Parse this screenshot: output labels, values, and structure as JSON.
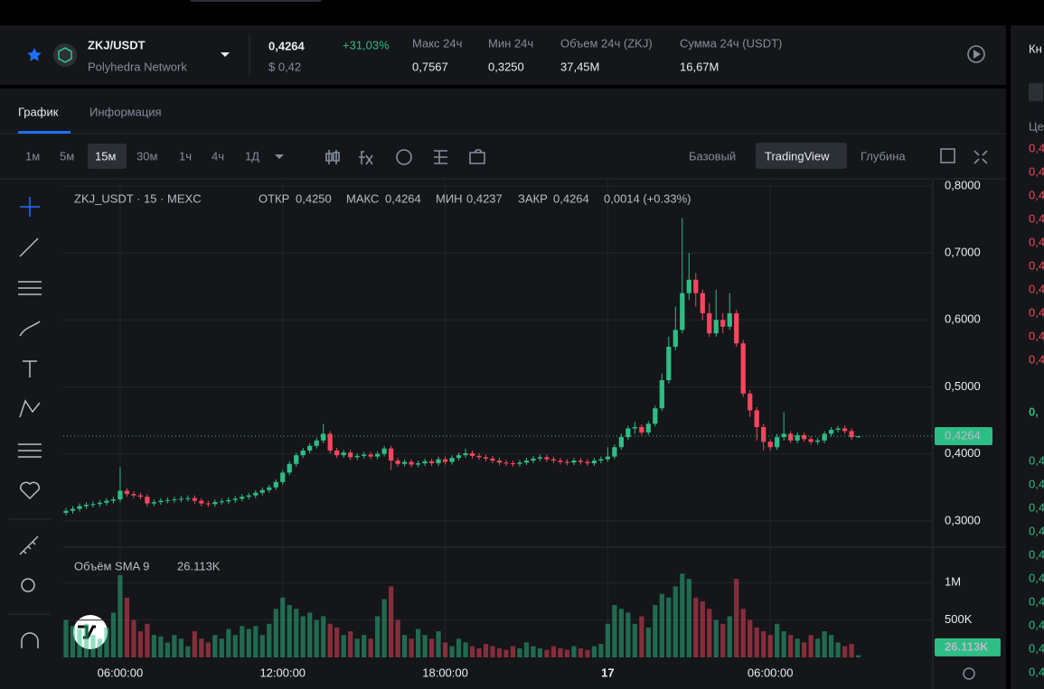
{
  "header": {
    "symbol": "ZKJ/USDT",
    "name": "Polyhedra Network",
    "price": "0,4264",
    "change": "+31,03%",
    "price_usd": "$ 0,42",
    "stats": [
      {
        "label": "Макс 24ч",
        "value": "0,7567"
      },
      {
        "label": "Мин 24ч",
        "value": "0,3250"
      },
      {
        "label": "Объем 24ч (ZKJ)",
        "value": "37,45M"
      },
      {
        "label": "Сумма 24ч (USDT)",
        "value": "16,67M"
      }
    ]
  },
  "tabs": [
    "График",
    "Информация"
  ],
  "intervals": [
    "1м",
    "5м",
    "15м",
    "30м",
    "1ч",
    "4ч",
    "1Д"
  ],
  "views": [
    "Базовый",
    "TradingView",
    "Глубина"
  ],
  "order_book_strip": {
    "header": "Кн",
    "column": "Це",
    "asks": [
      "0,4",
      "0,4",
      "0,4",
      "0,4",
      "0,4",
      "0,4",
      "0,4",
      "0,4",
      "0,4",
      "0,4"
    ],
    "mid": "0,",
    "bids": [
      "0,4",
      "0,4",
      "0,4",
      "0,4",
      "0,4",
      "0,4",
      "0,4",
      "0,4",
      "0,4",
      "0,4"
    ]
  },
  "chart_data": {
    "type": "candlestick",
    "legend": {
      "symbol": "ZKJ_USDT · 15 · MEXC",
      "items": [
        {
          "label": "ОТКР",
          "value": "0,4250"
        },
        {
          "label": "МАКС",
          "value": "0,4264"
        },
        {
          "label": "МИН",
          "value": "0,4237"
        },
        {
          "label": "ЗАКР",
          "value": "0,4264"
        }
      ],
      "change": "0,0014 (+0.33%)"
    },
    "x": [
      4,
      4.25,
      4.5,
      4.75,
      5,
      5.25,
      5.5,
      5.75,
      6,
      6.25,
      6.5,
      6.75,
      7,
      7.25,
      7.5,
      7.75,
      8,
      8.25,
      8.5,
      8.75,
      9,
      9.25,
      9.5,
      9.75,
      10,
      10.25,
      10.5,
      10.75,
      11,
      11.25,
      11.5,
      11.75,
      12,
      12.25,
      12.5,
      12.75,
      13,
      13.25,
      13.5,
      13.75,
      14,
      14.25,
      14.5,
      14.75,
      15,
      15.25,
      15.5,
      15.75,
      16,
      16.25,
      16.5,
      16.75,
      17,
      17.25,
      17.5,
      17.75,
      18,
      18.25,
      18.5,
      18.75,
      19,
      19.25,
      19.5,
      19.75,
      20,
      20.25,
      20.5,
      20.75,
      21,
      21.25,
      21.5,
      21.75,
      22,
      22.25,
      22.5,
      22.75,
      23,
      23.25,
      23.5,
      23.75,
      24,
      24.25,
      24.5,
      24.75,
      25,
      25.25,
      25.5,
      25.75,
      26,
      26.25,
      26.5,
      26.75,
      27,
      27.25,
      27.5,
      27.75,
      28,
      28.25,
      28.5,
      28.75,
      29,
      29.25,
      29.5,
      29.75,
      30,
      30.25,
      30.5,
      30.75,
      31,
      31.25,
      31.5,
      31.75,
      32,
      32.25,
      32.5,
      32.75,
      33,
      33.25
    ],
    "xlim": [
      3.9,
      36
    ],
    "xticks": [
      {
        "value": 6,
        "label": "06:00:00"
      },
      {
        "value": 12,
        "label": "12:00:00"
      },
      {
        "value": 18,
        "label": "18:00:00"
      },
      {
        "value": 24,
        "label": "17"
      },
      {
        "value": 30,
        "label": "06:00:00"
      }
    ],
    "ylim": [
      0.262,
      0.808
    ],
    "yticks": [
      {
        "value": 0.3,
        "label": "0,3000"
      },
      {
        "value": 0.4,
        "label": "0,4000"
      },
      {
        "value": 0.5,
        "label": "0,5000"
      },
      {
        "value": 0.6,
        "label": "0,6000"
      },
      {
        "value": 0.7,
        "label": "0,7000"
      },
      {
        "value": 0.8,
        "label": "0,8000"
      }
    ],
    "open": [
      0.312,
      0.315,
      0.318,
      0.322,
      0.324,
      0.325,
      0.327,
      0.33,
      0.332,
      0.345,
      0.34,
      0.338,
      0.336,
      0.326,
      0.328,
      0.33,
      0.331,
      0.332,
      0.333,
      0.334,
      0.33,
      0.326,
      0.325,
      0.328,
      0.329,
      0.331,
      0.333,
      0.336,
      0.338,
      0.342,
      0.346,
      0.35,
      0.358,
      0.372,
      0.385,
      0.398,
      0.405,
      0.412,
      0.42,
      0.43,
      0.405,
      0.398,
      0.402,
      0.395,
      0.397,
      0.399,
      0.396,
      0.4,
      0.408,
      0.39,
      0.385,
      0.388,
      0.384,
      0.386,
      0.389,
      0.386,
      0.392,
      0.388,
      0.394,
      0.398,
      0.401,
      0.397,
      0.395,
      0.393,
      0.39,
      0.387,
      0.386,
      0.385,
      0.387,
      0.39,
      0.393,
      0.395,
      0.392,
      0.39,
      0.388,
      0.387,
      0.39,
      0.388,
      0.386,
      0.39,
      0.392,
      0.396,
      0.41,
      0.425,
      0.438,
      0.44,
      0.432,
      0.445,
      0.468,
      0.51,
      0.56,
      0.585,
      0.64,
      0.66,
      0.64,
      0.61,
      0.58,
      0.6,
      0.59,
      0.61,
      0.565,
      0.49,
      0.465,
      0.44,
      0.418,
      0.41,
      0.425,
      0.43,
      0.42,
      0.428,
      0.422,
      0.418,
      0.42,
      0.43,
      0.436,
      0.438,
      0.434,
      0.425
    ],
    "high": [
      0.319,
      0.322,
      0.326,
      0.328,
      0.329,
      0.331,
      0.334,
      0.336,
      0.38,
      0.349,
      0.344,
      0.342,
      0.34,
      0.332,
      0.334,
      0.335,
      0.336,
      0.337,
      0.338,
      0.338,
      0.334,
      0.33,
      0.332,
      0.333,
      0.335,
      0.337,
      0.34,
      0.342,
      0.346,
      0.35,
      0.354,
      0.362,
      0.376,
      0.389,
      0.402,
      0.409,
      0.416,
      0.424,
      0.445,
      0.434,
      0.409,
      0.406,
      0.406,
      0.401,
      0.403,
      0.403,
      0.404,
      0.412,
      0.412,
      0.394,
      0.392,
      0.392,
      0.39,
      0.393,
      0.393,
      0.396,
      0.396,
      0.398,
      0.402,
      0.408,
      0.405,
      0.401,
      0.399,
      0.397,
      0.394,
      0.391,
      0.39,
      0.391,
      0.394,
      0.397,
      0.399,
      0.399,
      0.396,
      0.394,
      0.392,
      0.394,
      0.394,
      0.392,
      0.394,
      0.396,
      0.41,
      0.414,
      0.43,
      0.442,
      0.448,
      0.444,
      0.449,
      0.472,
      0.52,
      0.575,
      0.62,
      0.752,
      0.7,
      0.67,
      0.645,
      0.625,
      0.645,
      0.61,
      0.64,
      0.615,
      0.57,
      0.495,
      0.47,
      0.445,
      0.422,
      0.43,
      0.462,
      0.434,
      0.432,
      0.432,
      0.426,
      0.424,
      0.434,
      0.44,
      0.442,
      0.442,
      0.438,
      0.4264
    ],
    "low": [
      0.308,
      0.311,
      0.314,
      0.318,
      0.32,
      0.321,
      0.323,
      0.326,
      0.328,
      0.336,
      0.334,
      0.332,
      0.322,
      0.322,
      0.324,
      0.326,
      0.327,
      0.328,
      0.329,
      0.326,
      0.322,
      0.321,
      0.321,
      0.324,
      0.325,
      0.327,
      0.329,
      0.332,
      0.334,
      0.338,
      0.342,
      0.346,
      0.354,
      0.368,
      0.381,
      0.394,
      0.401,
      0.408,
      0.416,
      0.401,
      0.394,
      0.394,
      0.391,
      0.391,
      0.393,
      0.392,
      0.392,
      0.396,
      0.376,
      0.381,
      0.381,
      0.38,
      0.38,
      0.382,
      0.382,
      0.382,
      0.384,
      0.384,
      0.39,
      0.394,
      0.393,
      0.391,
      0.389,
      0.386,
      0.383,
      0.382,
      0.381,
      0.381,
      0.383,
      0.386,
      0.389,
      0.388,
      0.386,
      0.384,
      0.383,
      0.383,
      0.384,
      0.382,
      0.382,
      0.386,
      0.388,
      0.392,
      0.406,
      0.421,
      0.43,
      0.428,
      0.428,
      0.441,
      0.464,
      0.505,
      0.555,
      0.58,
      0.63,
      0.62,
      0.6,
      0.575,
      0.575,
      0.58,
      0.585,
      0.56,
      0.485,
      0.455,
      0.42,
      0.405,
      0.405,
      0.406,
      0.42,
      0.416,
      0.416,
      0.418,
      0.414,
      0.414,
      0.416,
      0.426,
      0.432,
      0.43,
      0.421,
      0.4237
    ],
    "close": [
      0.315,
      0.318,
      0.322,
      0.324,
      0.325,
      0.327,
      0.33,
      0.332,
      0.345,
      0.34,
      0.338,
      0.336,
      0.326,
      0.328,
      0.33,
      0.331,
      0.332,
      0.333,
      0.334,
      0.33,
      0.326,
      0.325,
      0.328,
      0.329,
      0.331,
      0.333,
      0.336,
      0.338,
      0.342,
      0.346,
      0.35,
      0.358,
      0.372,
      0.385,
      0.398,
      0.405,
      0.412,
      0.42,
      0.43,
      0.405,
      0.398,
      0.402,
      0.395,
      0.397,
      0.399,
      0.396,
      0.4,
      0.408,
      0.39,
      0.385,
      0.388,
      0.384,
      0.386,
      0.389,
      0.386,
      0.392,
      0.388,
      0.394,
      0.398,
      0.401,
      0.397,
      0.395,
      0.393,
      0.39,
      0.387,
      0.386,
      0.385,
      0.387,
      0.39,
      0.393,
      0.395,
      0.392,
      0.39,
      0.388,
      0.387,
      0.39,
      0.388,
      0.386,
      0.39,
      0.392,
      0.396,
      0.41,
      0.425,
      0.438,
      0.44,
      0.432,
      0.445,
      0.468,
      0.51,
      0.56,
      0.585,
      0.64,
      0.66,
      0.64,
      0.61,
      0.58,
      0.6,
      0.59,
      0.61,
      0.565,
      0.49,
      0.465,
      0.44,
      0.418,
      0.41,
      0.425,
      0.43,
      0.42,
      0.428,
      0.422,
      0.418,
      0.42,
      0.43,
      0.436,
      0.438,
      0.434,
      0.425,
      0.4264
    ],
    "up_color": "#2ebd85",
    "down_color": "#f6465d",
    "grid": true,
    "last_price": {
      "value": 0.4264,
      "label": "0,4264"
    },
    "volume": {
      "label": "Объём SMA 9",
      "values": [
        500000,
        420000,
        380000,
        450000,
        300000,
        250000,
        400000,
        600000,
        1100000,
        800000,
        500000,
        350000,
        450000,
        300000,
        280000,
        200000,
        300000,
        250000,
        150000,
        350000,
        250000,
        200000,
        300000,
        250000,
        380000,
        300000,
        420000,
        380000,
        420000,
        300000,
        450000,
        650000,
        800000,
        700000,
        650000,
        550000,
        600000,
        500000,
        550000,
        450000,
        400000,
        300000,
        350000,
        250000,
        300000,
        250000,
        550000,
        780000,
        950000,
        500000,
        300000,
        250000,
        380000,
        300000,
        250000,
        350000,
        200000,
        150000,
        250000,
        200000,
        150000,
        120000,
        180000,
        150000,
        120000,
        100000,
        150000,
        120000,
        200000,
        150000,
        120000,
        100000,
        150000,
        120000,
        100000,
        150000,
        120000,
        100000,
        150000,
        180000,
        450000,
        700000,
        650000,
        600000,
        450000,
        550000,
        400000,
        700000,
        850000,
        800000,
        950000,
        1120000,
        1050000,
        800000,
        750000,
        650000,
        500000,
        450000,
        550000,
        1050000,
        650000,
        500000,
        400000,
        350000,
        300000,
        450000,
        350000,
        300000,
        250000,
        200000,
        300000,
        250000,
        350000,
        300000,
        200000,
        150000,
        180000,
        30000
      ],
      "ylim": [
        0,
        1450000
      ],
      "yticks": [
        {
          "value": 500000,
          "label": "500K"
        },
        {
          "value": 1000000,
          "label": "1M"
        }
      ],
      "sma": {
        "value": 26113,
        "label": "26.113K"
      }
    }
  }
}
